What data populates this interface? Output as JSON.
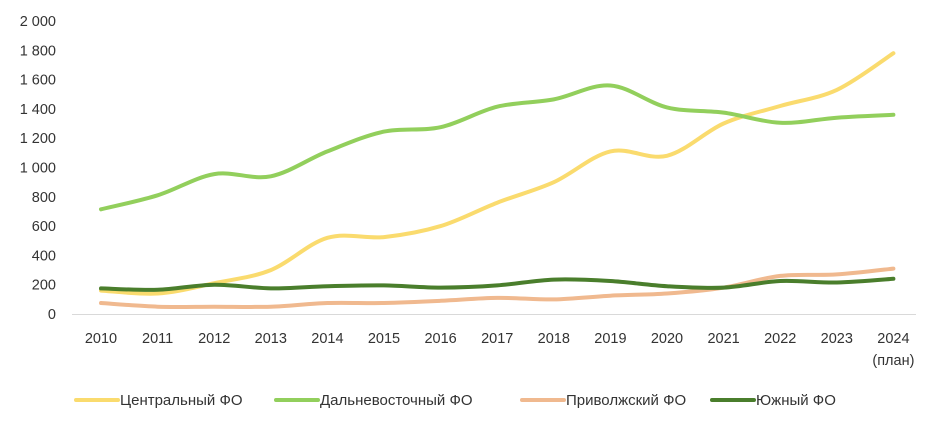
{
  "chart_data": {
    "type": "line",
    "title": "",
    "xlabel": "",
    "ylabel": "",
    "categories": [
      "2010",
      "2011",
      "2012",
      "2013",
      "2014",
      "2015",
      "2016",
      "2017",
      "2018",
      "2019",
      "2020",
      "2021",
      "2022",
      "2023",
      "2024"
    ],
    "category_sublabels": {
      "2024": "(план)"
    },
    "yticks": [
      "0",
      "200",
      "400",
      "600",
      "800",
      "1 000",
      "1 200",
      "1 400",
      "1 600",
      "1 800",
      "2 000"
    ],
    "ylim": [
      0,
      2000
    ],
    "grid": false,
    "legend_position": "bottom",
    "series": [
      {
        "name": "Центральный ФО",
        "color": "#FADB6E",
        "values": [
          160,
          140,
          210,
          300,
          520,
          525,
          600,
          760,
          900,
          1110,
          1080,
          1300,
          1420,
          1530,
          1780
        ]
      },
      {
        "name": "Дальневосточный ФО",
        "color": "#92CF5C",
        "values": [
          715,
          810,
          955,
          940,
          1110,
          1245,
          1275,
          1415,
          1465,
          1560,
          1410,
          1375,
          1305,
          1340,
          1360
        ]
      },
      {
        "name": "Приволжский ФО",
        "color": "#F0B98F",
        "values": [
          75,
          50,
          50,
          50,
          75,
          75,
          90,
          110,
          100,
          125,
          140,
          180,
          260,
          270,
          310
        ]
      },
      {
        "name": "Южный ФО",
        "color": "#4A7E2C",
        "values": [
          175,
          165,
          200,
          175,
          190,
          195,
          180,
          195,
          235,
          225,
          190,
          180,
          225,
          215,
          240
        ]
      }
    ]
  }
}
